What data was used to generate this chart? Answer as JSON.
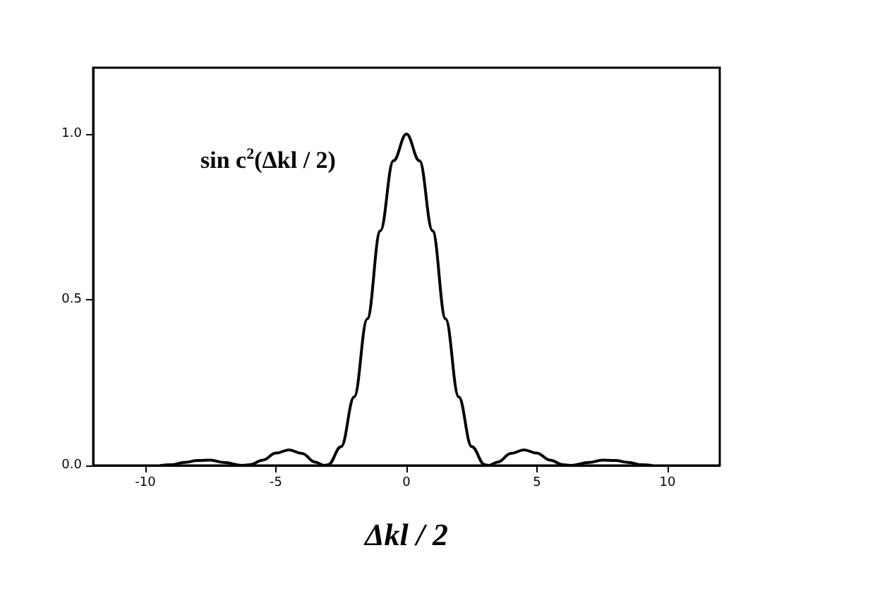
{
  "chart_data": {
    "type": "line",
    "xlabel": "Δkl / 2",
    "x": [
      -9.42,
      -9,
      -8.5,
      -8,
      -7.5,
      -7,
      -6.28,
      -6,
      -5.5,
      -5,
      -4.5,
      -4,
      -3.5,
      -3.14,
      -3,
      -2.5,
      -2,
      -1.5,
      -1,
      -0.5,
      0,
      0.5,
      1,
      1.5,
      2,
      2.5,
      3,
      3.14,
      3.5,
      4,
      4.5,
      5,
      5.5,
      6,
      6.28,
      7,
      7.5,
      8,
      8.5,
      9,
      9.42
    ],
    "series": [
      {
        "color": "#000000",
        "values": [
          0,
          0.002,
          0.009,
          0.015,
          0.016,
          0.009,
          0,
          0.002,
          0.016,
          0.037,
          0.047,
          0.036,
          0.01,
          0,
          0.002,
          0.057,
          0.207,
          0.442,
          0.708,
          0.919,
          1,
          0.919,
          0.708,
          0.442,
          0.207,
          0.057,
          0.002,
          0,
          0.01,
          0.036,
          0.047,
          0.037,
          0.016,
          0.002,
          0,
          0.009,
          0.016,
          0.015,
          0.009,
          0.002,
          0
        ]
      }
    ],
    "annotations": [
      "sin c$^{2}$(Δkl / 2)"
    ],
    "xlim": [
      -12,
      12
    ],
    "xticks": [
      -10,
      -5,
      0,
      5,
      10
    ],
    "ylim": [
      0,
      1.2
    ],
    "yticks": [
      {
        "value": 0,
        "label": "0.0"
      },
      {
        "value": 0.5,
        "label": "0.5"
      },
      {
        "value": 1,
        "label": "1.0"
      }
    ],
    "grid": false,
    "marker": "none",
    "line_style": "solid"
  }
}
